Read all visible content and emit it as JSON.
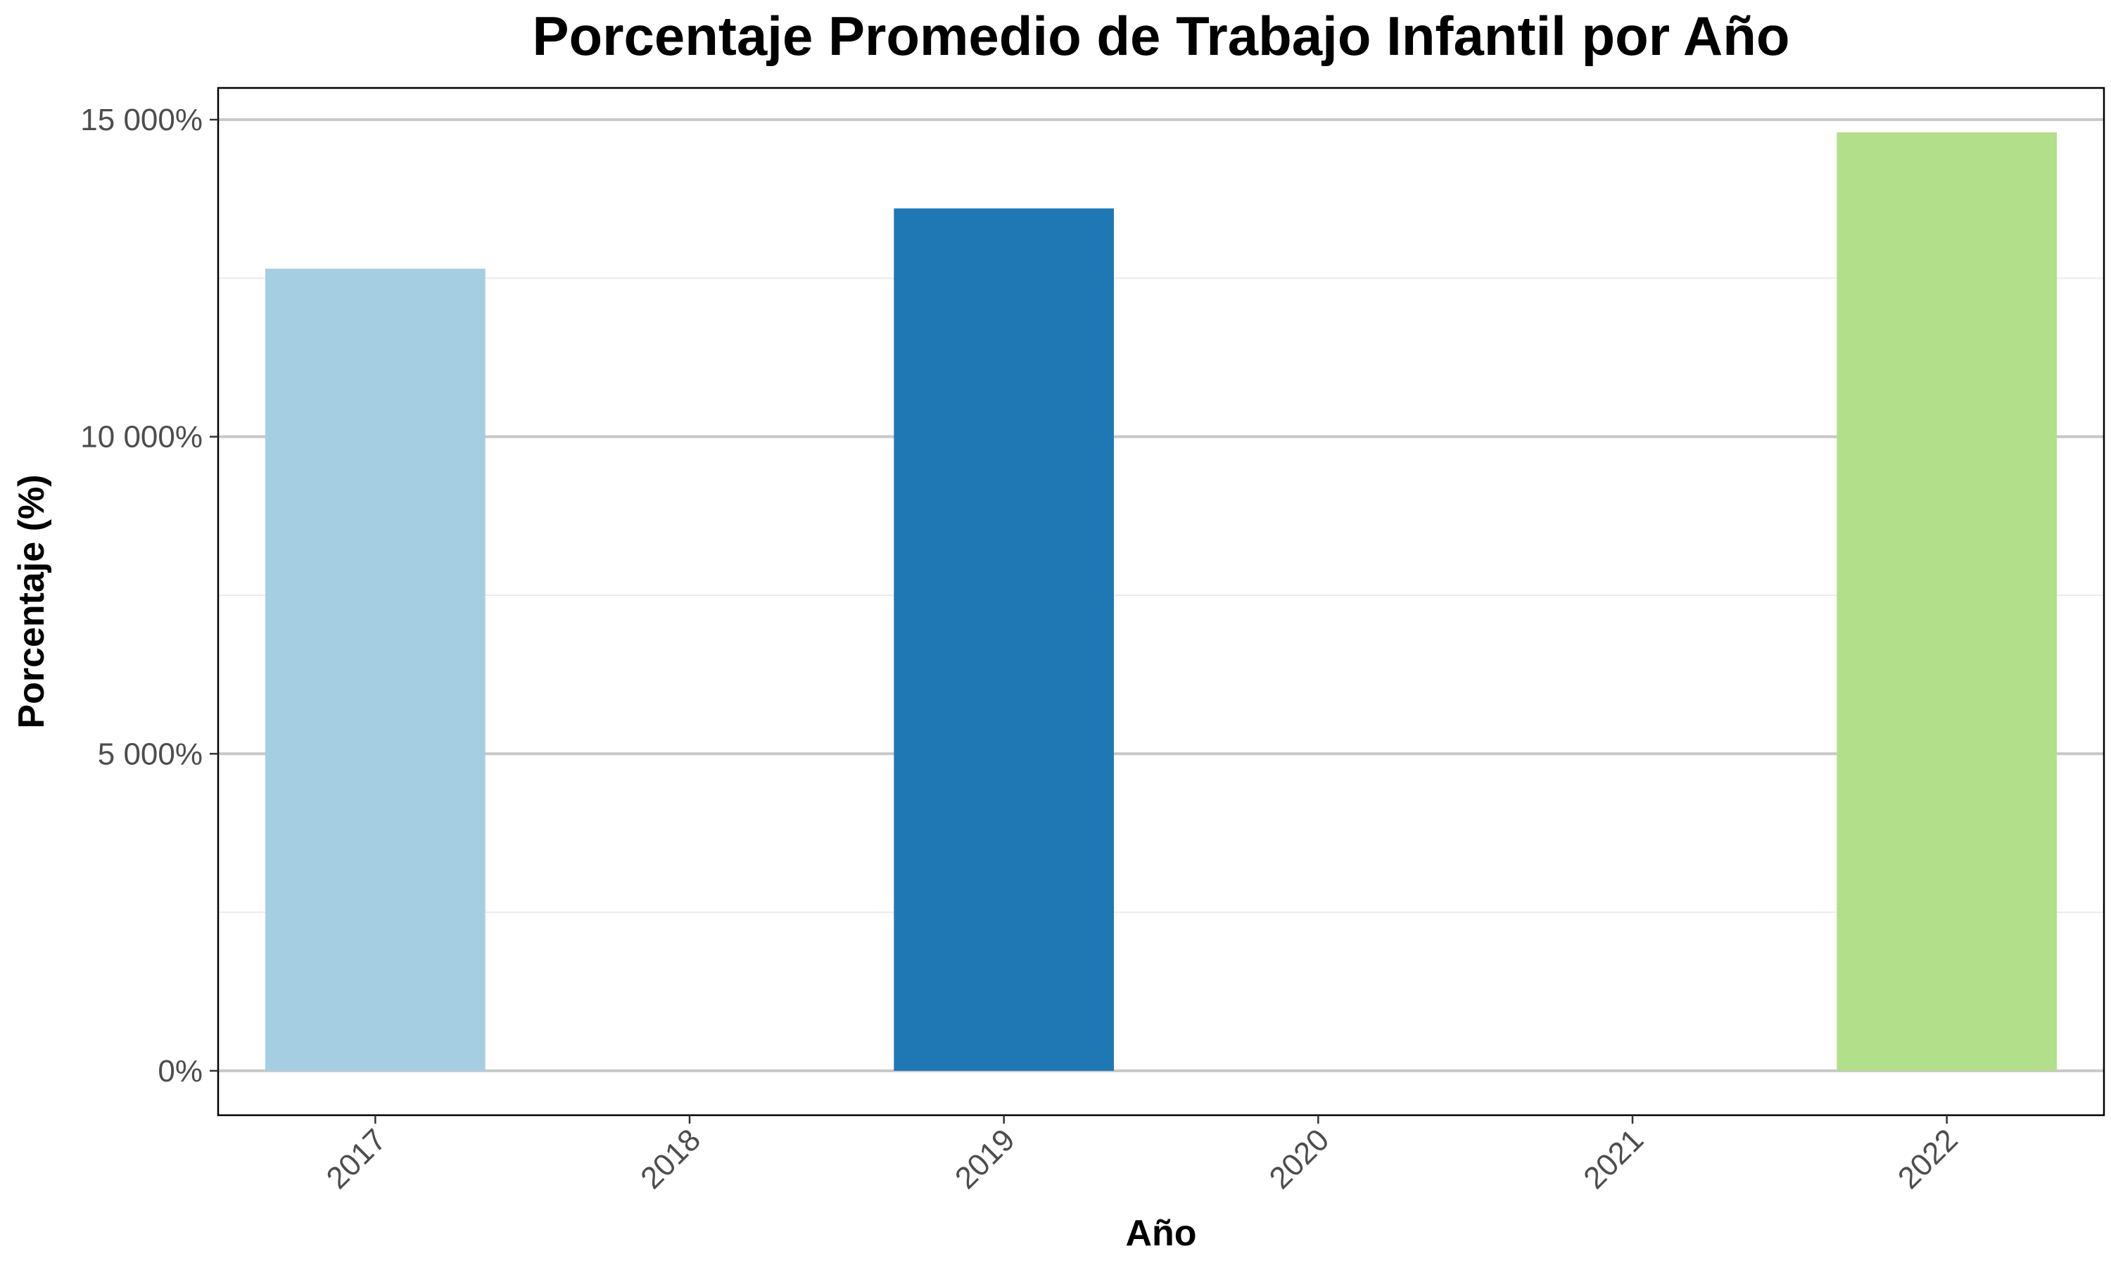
{
  "chart_data": {
    "type": "bar",
    "title": "Porcentaje Promedio de Trabajo Infantil por Año",
    "xlabel": "Año",
    "ylabel": "Porcentaje (%)",
    "categories": [
      "2017",
      "2018",
      "2019",
      "2020",
      "2021",
      "2022"
    ],
    "values": [
      12650,
      null,
      13600,
      null,
      null,
      14800
    ],
    "colors": [
      "#a6cee3",
      null,
      "#1f78b4",
      null,
      null,
      "#b2df8a"
    ],
    "ylim": [
      -700,
      15500
    ],
    "y_ticks": [
      0,
      5000,
      10000,
      15000
    ],
    "y_tick_labels": [
      "0%",
      "5 000%",
      "10 000%",
      "15 000%"
    ],
    "y_minor_ticks": [
      2500,
      7500,
      12500
    ],
    "grid": true,
    "legend": "none"
  }
}
